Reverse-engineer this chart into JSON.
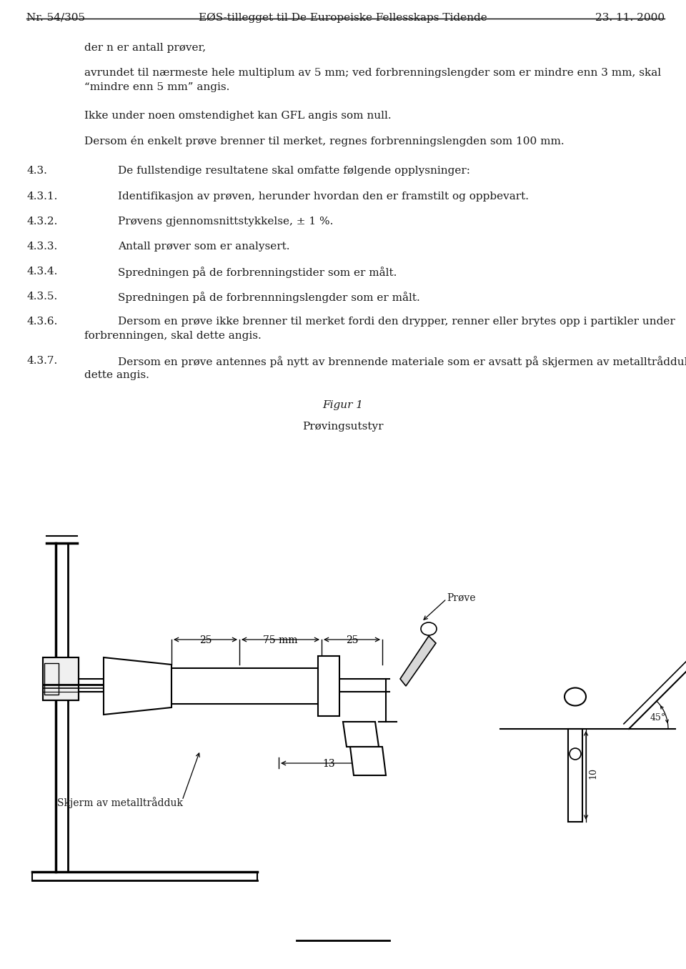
{
  "header_left": "Nr. 54/305",
  "header_center": "EØS-tillegget til De Europeiske Fellesskaps Tidende",
  "header_right": "23. 11. 2000",
  "bg_color": "#ffffff",
  "text_color": "#1a1a1a",
  "paragraphs": [
    {
      "number": "",
      "text": "der n er antall prøver,",
      "indent": 0.125
    },
    {
      "number": "",
      "text": "avrundet til nærmeste hele multiplum av 5 mm; ved forbrenningslengder som er mindre enn 3 mm, skal",
      "indent": 0.125
    },
    {
      "number": "",
      "text": "“mindre enn 5 mm” angis.",
      "indent": 0.125
    },
    {
      "number": "",
      "text": "Ikke under noen omstendighet kan GFL angis som null.",
      "indent": 0.125
    },
    {
      "number": "",
      "text": "Dersom én enkelt prøve brenner til merket, regnes forbrenningslengden som 100 mm.",
      "indent": 0.125
    },
    {
      "number": "4.3.",
      "text": "De fullstendige resultatene skal omfatte følgende opplysninger:",
      "indent": 0.205
    },
    {
      "number": "4.3.1.",
      "text": "Identifikasjon av prøven, herunder hvordan den er framstilt og oppbevart.",
      "indent": 0.205
    },
    {
      "number": "4.3.2.",
      "text": "Prøvens gjennomsnittstykkelse, ± 1 %.",
      "indent": 0.205
    },
    {
      "number": "4.3.3.",
      "text": "Antall prøver som er analysert.",
      "indent": 0.205
    },
    {
      "number": "4.3.4.",
      "text": "Spredningen på de forbrenningstider som er målt.",
      "indent": 0.205
    },
    {
      "number": "4.3.5.",
      "text": "Spredningen på de forbrennningslengder som er målt.",
      "indent": 0.205
    },
    {
      "number": "4.3.6.",
      "text": "Dersom en prøve ikke brenner til merket fordi den drypper, renner eller brytes opp i partikler under",
      "indent": 0.205
    },
    {
      "number": "",
      "text": "forbrenningen, skal dette angis.",
      "indent": 0.205
    },
    {
      "number": "4.3.7.",
      "text": "Dersom en prøve antennes på nytt av brennende materiale som er avsatt på skjermen av metalltrådduk, skal",
      "indent": 0.205
    },
    {
      "number": "",
      "text": "dette angis.",
      "indent": 0.205
    }
  ]
}
